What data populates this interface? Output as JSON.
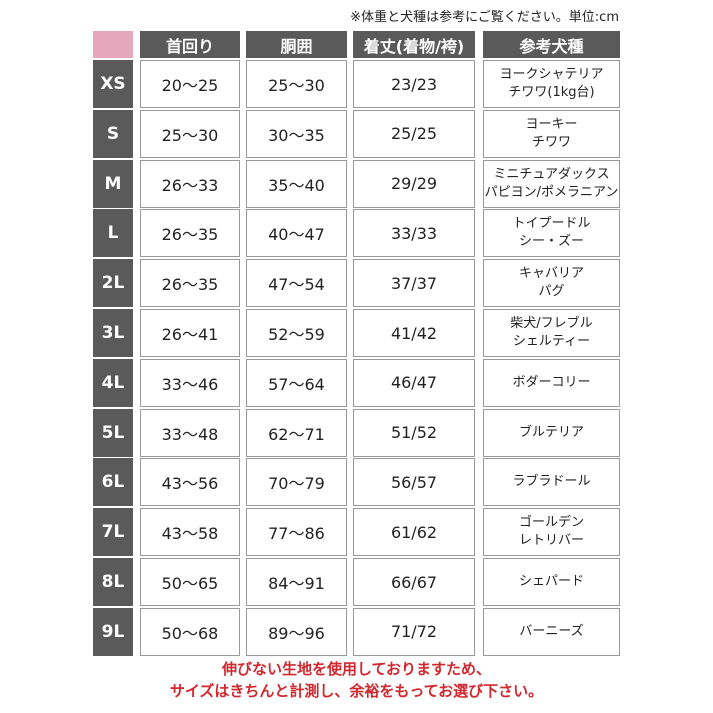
{
  "note": "※体重と犬種は参考にご覧ください。単位:cm",
  "headers": [
    "首回り",
    "胴囲",
    "着丈(着物/袴)",
    "参考犬種"
  ],
  "accent_color": "#e6a7bd",
  "rows": [
    {
      "size": "XS",
      "neck": "20〜25",
      "chest": "25〜30",
      "length": "23/23",
      "breed1": "ヨークシャテリア",
      "breed2": "チワワ(1kg台)"
    },
    {
      "size": "S",
      "neck": "25〜30",
      "chest": "30〜35",
      "length": "25/25",
      "breed1": "ヨーキー",
      "breed2": "チワワ"
    },
    {
      "size": "M",
      "neck": "26〜33",
      "chest": "35〜40",
      "length": "29/29",
      "breed1": "ミニチュアダックス",
      "breed2": "パピヨン/ポメラニアン"
    },
    {
      "size": "L",
      "neck": "26〜35",
      "chest": "40〜47",
      "length": "33/33",
      "breed1": "トイプードル",
      "breed2": "シー・ズー"
    },
    {
      "size": "2L",
      "neck": "26〜35",
      "chest": "47〜54",
      "length": "37/37",
      "breed1": "キャバリア",
      "breed2": "パグ"
    },
    {
      "size": "3L",
      "neck": "26〜41",
      "chest": "52〜59",
      "length": "41/42",
      "breed1": "柴犬/フレブル",
      "breed2": "シェルティー"
    },
    {
      "size": "4L",
      "neck": "33〜46",
      "chest": "57〜64",
      "length": "46/47",
      "breed1": "ボダーコリー",
      "breed2": ""
    },
    {
      "size": "5L",
      "neck": "33〜48",
      "chest": "62〜71",
      "length": "51/52",
      "breed1": "ブルテリア",
      "breed2": ""
    },
    {
      "size": "6L",
      "neck": "43〜56",
      "chest": "70〜79",
      "length": "56/57",
      "breed1": "ラブラドール",
      "breed2": ""
    },
    {
      "size": "7L",
      "neck": "43〜58",
      "chest": "77〜86",
      "length": "61/62",
      "breed1": "ゴールデン",
      "breed2": "レトリバー"
    },
    {
      "size": "8L",
      "neck": "50〜65",
      "chest": "84〜91",
      "length": "66/67",
      "breed1": "シェパード",
      "breed2": ""
    },
    {
      "size": "9L",
      "neck": "50〜68",
      "chest": "89〜96",
      "length": "71/72",
      "breed1": "バーニーズ",
      "breed2": ""
    }
  ],
  "footer": [
    "伸びない生地を使用しておりますため、",
    "サイズはきちんと計測し、余裕をもってお選び下さい。"
  ]
}
